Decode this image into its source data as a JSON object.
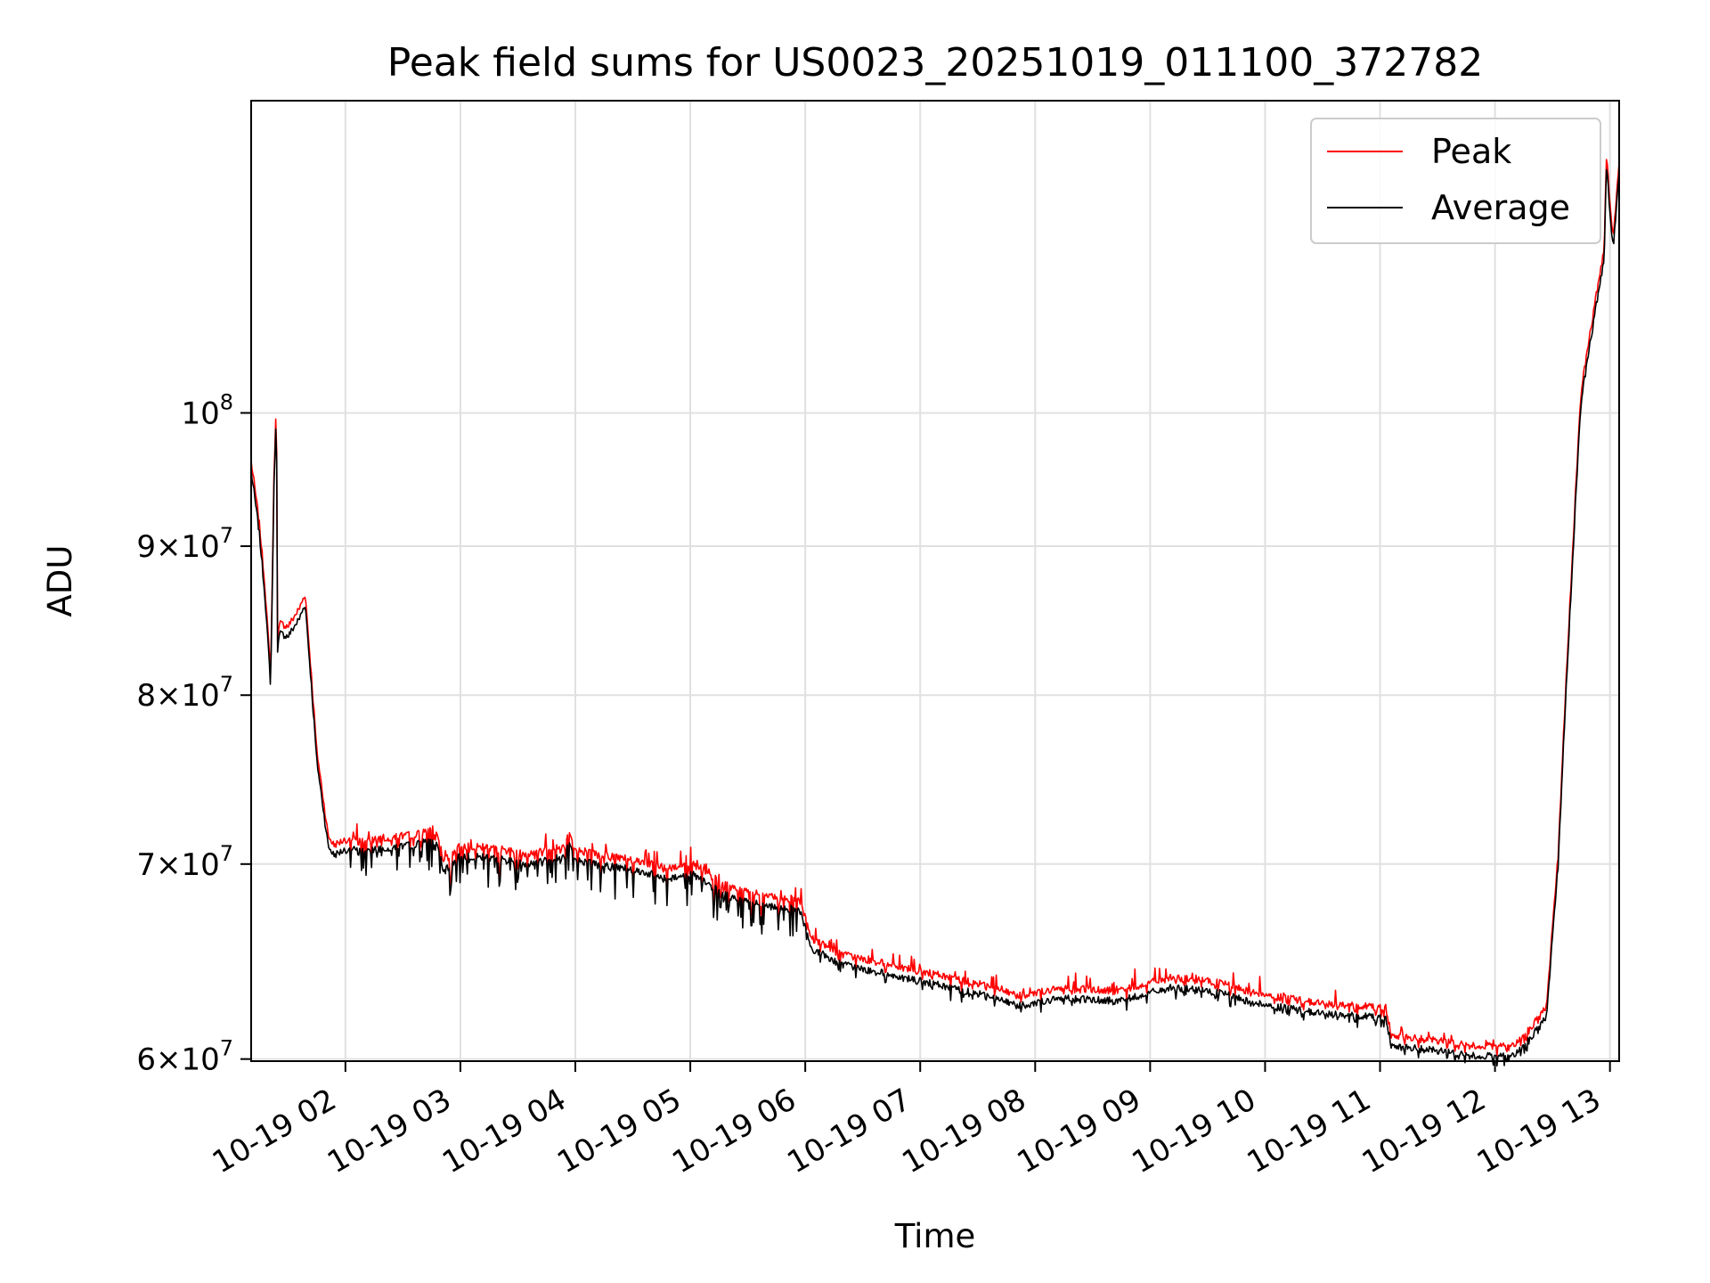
{
  "chart_data": {
    "type": "line",
    "title": "Peak field sums for US0023_20251019_011100_372782",
    "xlabel": "Time",
    "ylabel": "ADU",
    "xlim": [
      1.18,
      13.08
    ],
    "ylim": [
      59900000,
      128000000
    ],
    "yscale": "log",
    "grid": true,
    "legend_position": "top-right",
    "x_ticks": [
      2,
      3,
      4,
      5,
      6,
      7,
      8,
      9,
      10,
      11,
      12,
      13
    ],
    "x_tick_labels": [
      "10-19 02",
      "10-19 03",
      "10-19 04",
      "10-19 05",
      "10-19 06",
      "10-19 07",
      "10-19 08",
      "10-19 09",
      "10-19 10",
      "10-19 11",
      "10-19 12",
      "10-19 13"
    ],
    "y_ticks": [
      {
        "value": 60000000,
        "mantissa": "6",
        "base": "10",
        "exp": "7"
      },
      {
        "value": 70000000,
        "mantissa": "7",
        "base": "10",
        "exp": "7"
      },
      {
        "value": 80000000,
        "mantissa": "8",
        "base": "10",
        "exp": "7"
      },
      {
        "value": 90000000,
        "mantissa": "9",
        "base": "10",
        "exp": "7"
      },
      {
        "value": 100000000,
        "mantissa": "",
        "base": "10",
        "exp": "8"
      }
    ],
    "series": [
      {
        "name": "Peak",
        "color": "#ff0000",
        "offset_fraction": 0.008
      },
      {
        "name": "Average",
        "color": "#000000",
        "offset_fraction": 0.0
      }
    ],
    "x": [
      1.18,
      1.25,
      1.3,
      1.35,
      1.38,
      1.4,
      1.41,
      1.43,
      1.5,
      1.6,
      1.65,
      1.7,
      1.75,
      1.8,
      1.85,
      1.9,
      2.0,
      2.2,
      2.5,
      2.8,
      2.85,
      3.0,
      3.3,
      3.6,
      3.9,
      3.95,
      4.0,
      4.5,
      4.8,
      5.0,
      5.3,
      5.6,
      5.95,
      6.05,
      6.3,
      6.6,
      7.0,
      7.5,
      7.85,
      8.2,
      8.3,
      8.7,
      9.2,
      9.6,
      10.0,
      10.5,
      11.05,
      11.1,
      11.5,
      11.9,
      12.2,
      12.45,
      12.55,
      12.65,
      12.75,
      12.85,
      12.95,
      12.97,
      13.0,
      13.03,
      13.08
    ],
    "values": [
      95500000,
      91000000,
      86500000,
      80500000,
      95000000,
      100000000,
      83000000,
      84000000,
      83800000,
      85000000,
      86000000,
      81000000,
      76000000,
      73500000,
      71000000,
      70500000,
      70800000,
      70800000,
      71000000,
      71300000,
      69500000,
      70500000,
      70300000,
      70000000,
      70400000,
      71300000,
      70200000,
      69700000,
      69200000,
      69500000,
      68300000,
      67800000,
      67500000,
      65500000,
      64700000,
      64300000,
      63800000,
      63200000,
      62600000,
      62900000,
      63000000,
      62800000,
      63500000,
      63200000,
      62600000,
      62200000,
      62000000,
      60600000,
      60400000,
      60100000,
      60300000,
      62000000,
      70000000,
      85000000,
      101000000,
      107000000,
      113000000,
      122000000,
      117000000,
      114000000,
      121000000
    ]
  }
}
